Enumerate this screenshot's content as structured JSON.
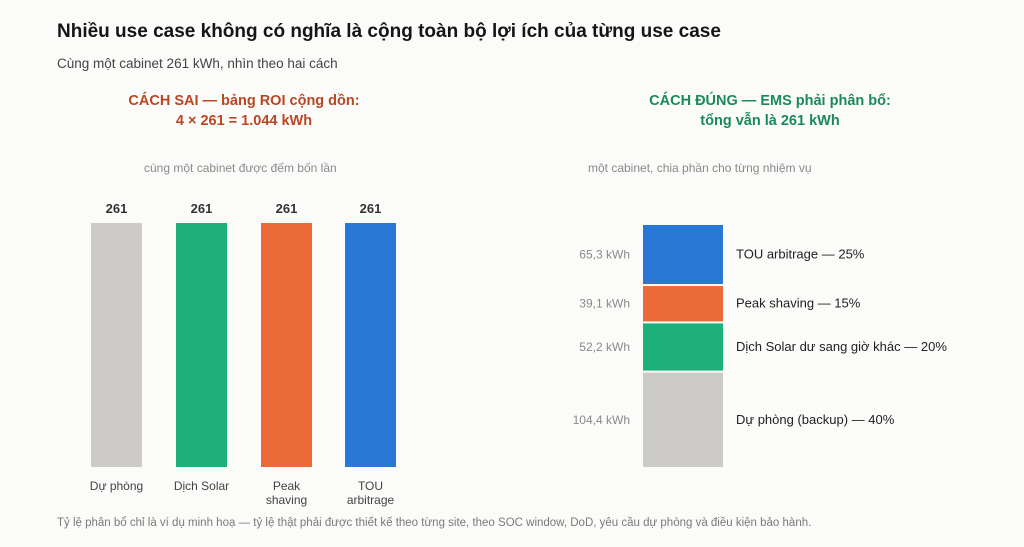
{
  "title": "Nhiều use case không có nghĩa là cộng toàn bộ lợi ích của từng use case",
  "subtitle": "Cùng một cabinet 261 kWh, nhìn theo hai cách",
  "footnote": "Tỷ lệ phân bổ chỉ là ví dụ minh hoạ — tỷ lệ thật phải được thiết kế theo từng site, theo SOC window, DoD, yêu cầu dự phòng và điều kiện bảo hành.",
  "chart_data": [
    {
      "type": "bar",
      "heading_lines": [
        "CÁCH SAI — bảng ROI cộng dồn:",
        "4 × 261 = 1.044 kWh"
      ],
      "note": "cùng một cabinet được đếm bốn lần",
      "categories": [
        [
          "Dự phòng"
        ],
        [
          "Dịch Solar"
        ],
        [
          "Peak",
          "shaving"
        ],
        [
          "TOU",
          "arbitrage"
        ]
      ],
      "values": [
        261,
        261,
        261,
        261
      ],
      "data_labels": [
        "261",
        "261",
        "261",
        "261"
      ],
      "colors": [
        "#cdcbc7",
        "#1db07c",
        "#eb6a37",
        "#2a78d6"
      ],
      "ylim": [
        0,
        261
      ],
      "grid": false
    },
    {
      "type": "stacked-bar",
      "heading_lines": [
        "CÁCH ĐÚNG — EMS phải phân bổ:",
        "tổng vẫn là 261 kWh"
      ],
      "note": "một cabinet, chia phần cho từng nhiệm vụ",
      "total": 261,
      "segments": [
        {
          "name": "TOU arbitrage — 25%",
          "value": 65.3,
          "value_label": "65,3 kWh",
          "color": "#2a78d6"
        },
        {
          "name": "Peak shaving — 15%",
          "value": 39.1,
          "value_label": "39,1 kWh",
          "color": "#eb6a37"
        },
        {
          "name": "Dịch Solar dư sang giờ khác — 20%",
          "value": 52.2,
          "value_label": "52,2 kWh",
          "color": "#1db07c"
        },
        {
          "name": "Dự phòng (backup) — 40%",
          "value": 104.4,
          "value_label": "104,4 kWh",
          "color": "#cdcbc7"
        }
      ]
    }
  ]
}
